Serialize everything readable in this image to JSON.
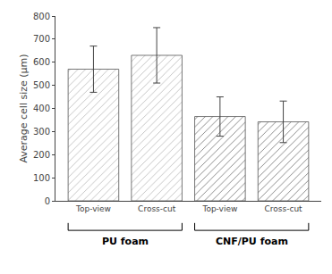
{
  "chart_data": {
    "type": "bar",
    "categories": [
      "Top-view",
      "Cross-cut",
      "Top-view",
      "Cross-cut"
    ],
    "values": [
      570,
      630,
      365,
      342
    ],
    "errors_upper": [
      100,
      120,
      85,
      90
    ],
    "errors_lower": [
      100,
      120,
      85,
      90
    ],
    "colors": [
      "#c0c0c0",
      "#c0c0c0",
      "#808080",
      "#808080"
    ],
    "group_labels": [
      "PU foam",
      "CNF/PU foam"
    ],
    "ylabel": "Average cell size (μm)",
    "ylim": [
      0,
      800
    ],
    "yticks": [
      0,
      100,
      200,
      300,
      400,
      500,
      600,
      700,
      800
    ],
    "grid": false
  }
}
